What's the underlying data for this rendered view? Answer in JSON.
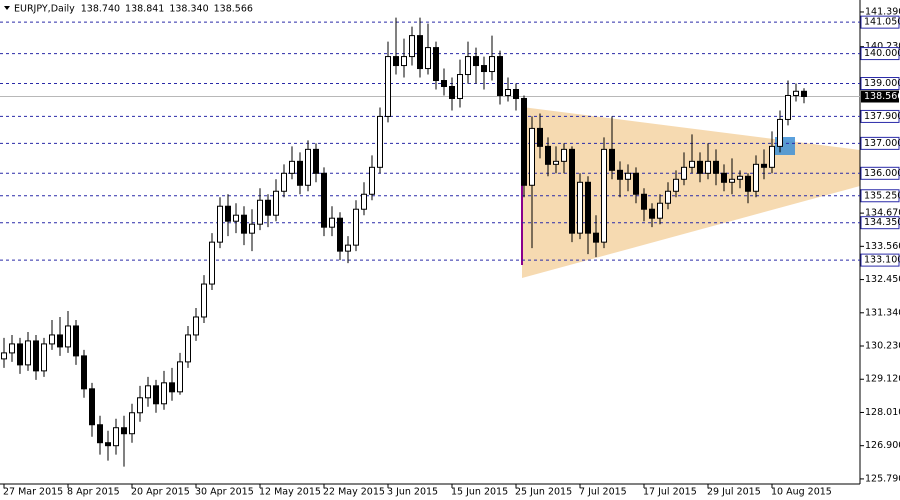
{
  "chart_data": {
    "type": "candlestick",
    "title": "EURJPY,Daily",
    "header_values": [
      "138.740",
      "138.841",
      "138.340",
      "138.566"
    ],
    "categories": [
      "27 Mar 2015",
      null,
      null,
      null,
      null,
      null,
      null,
      null,
      "8 Apr 2015",
      null,
      null,
      null,
      null,
      null,
      null,
      null,
      "20 Apr 2015",
      null,
      null,
      null,
      null,
      null,
      null,
      null,
      "30 Apr 2015",
      null,
      null,
      null,
      null,
      null,
      null,
      null,
      "12 May 2015",
      null,
      null,
      null,
      null,
      null,
      null,
      null,
      "22 May 2015",
      null,
      null,
      null,
      null,
      null,
      null,
      null,
      "3 Jun 2015",
      null,
      null,
      null,
      null,
      null,
      null,
      null,
      "15 Jun 2015",
      null,
      null,
      null,
      null,
      null,
      null,
      null,
      "25 Jun 2015",
      null,
      null,
      null,
      null,
      null,
      null,
      null,
      "7 Jul 2015",
      null,
      null,
      null,
      null,
      null,
      null,
      null,
      "17 Jul 2015",
      null,
      null,
      null,
      null,
      null,
      null,
      null,
      "29 Jul 2015",
      null,
      null,
      null,
      null,
      null,
      null,
      null,
      "10 Aug 2015",
      null,
      null,
      null,
      null
    ],
    "open": [
      129.8,
      130.0,
      130.3,
      129.6,
      130.4,
      129.4,
      130.3,
      130.6,
      130.2,
      130.9,
      129.9,
      128.8,
      127.6,
      127.0,
      126.9,
      127.5,
      127.3,
      128.0,
      128.5,
      128.9,
      128.3,
      129.0,
      128.7,
      129.7,
      130.6,
      131.2,
      132.3,
      133.7,
      134.9,
      134.4,
      134.6,
      134.0,
      134.3,
      135.1,
      134.6,
      135.4,
      136.0,
      136.4,
      135.6,
      136.8,
      136.0,
      134.2,
      134.5,
      133.4,
      133.6,
      134.8,
      135.3,
      136.2,
      137.9,
      139.9,
      139.6,
      139.9,
      140.6,
      139.5,
      140.2,
      139.1,
      138.9,
      138.5,
      139.3,
      139.9,
      139.6,
      139.4,
      139.9,
      138.6,
      138.8,
      138.5,
      135.6,
      137.5,
      136.9,
      136.3,
      136.4,
      136.8,
      134.0,
      135.7,
      134.0,
      133.7,
      136.8,
      136.1,
      135.8,
      136.0,
      135.3,
      134.8,
      134.5,
      135.0,
      135.4,
      135.8,
      136.2,
      136.4,
      136.0,
      136.4,
      136.0,
      135.7,
      135.8,
      135.9,
      135.4,
      136.3,
      136.2,
      136.9,
      137.8,
      138.6,
      138.74
    ],
    "high": [
      130.5,
      130.6,
      130.5,
      130.7,
      130.6,
      130.5,
      131.1,
      131.2,
      131.4,
      131.1,
      130.1,
      129.0,
      127.9,
      127.4,
      127.8,
      127.9,
      128.3,
      128.9,
      129.2,
      129.1,
      129.4,
      129.5,
      130.0,
      130.9,
      131.5,
      132.6,
      134.0,
      135.2,
      135.3,
      135.0,
      134.9,
      134.8,
      135.5,
      135.3,
      135.8,
      136.3,
      136.9,
      136.7,
      137.1,
      137.0,
      136.2,
      134.9,
      134.7,
      133.9,
      135.1,
      135.7,
      136.6,
      138.2,
      140.4,
      141.2,
      140.5,
      140.9,
      141.2,
      141.0,
      140.4,
      139.5,
      139.2,
      139.8,
      140.4,
      140.2,
      139.9,
      140.6,
      140.1,
      139.2,
      139.0,
      138.6,
      137.9,
      138.0,
      137.2,
      136.9,
      137.0,
      136.9,
      136.0,
      135.9,
      134.6,
      137.2,
      137.9,
      136.4,
      136.3,
      136.2,
      135.5,
      135.0,
      135.3,
      135.7,
      136.1,
      136.7,
      137.3,
      136.7,
      137.0,
      136.8,
      136.3,
      136.5,
      136.1,
      136.0,
      136.6,
      136.8,
      137.4,
      138.1,
      139.1,
      139.0,
      138.841
    ],
    "low": [
      129.5,
      129.7,
      129.3,
      129.4,
      129.1,
      129.2,
      130.1,
      129.9,
      130.0,
      129.6,
      128.5,
      127.2,
      126.6,
      126.4,
      126.6,
      126.2,
      127.0,
      127.7,
      128.2,
      128.0,
      128.1,
      128.4,
      128.6,
      129.5,
      130.4,
      131.0,
      132.1,
      133.5,
      133.9,
      134.0,
      133.6,
      133.4,
      134.1,
      134.2,
      134.4,
      135.2,
      135.8,
      135.3,
      135.4,
      135.7,
      133.9,
      133.9,
      133.1,
      133.0,
      133.4,
      134.6,
      135.1,
      136.0,
      137.7,
      139.3,
      139.2,
      139.6,
      139.2,
      139.3,
      138.8,
      138.6,
      138.1,
      138.2,
      139.0,
      139.0,
      138.8,
      139.1,
      138.3,
      138.4,
      138.1,
      135.2,
      133.5,
      136.5,
      135.9,
      136.0,
      136.0,
      133.7,
      133.8,
      133.3,
      133.2,
      133.5,
      135.8,
      135.2,
      135.4,
      135.0,
      134.4,
      134.2,
      134.3,
      134.8,
      135.2,
      135.6,
      136.0,
      135.7,
      135.8,
      135.6,
      135.4,
      135.3,
      135.5,
      135.0,
      135.2,
      135.8,
      136.0,
      136.7,
      137.6,
      138.4,
      138.34
    ],
    "close": [
      130.0,
      130.3,
      129.6,
      130.4,
      129.4,
      130.3,
      130.6,
      130.2,
      130.9,
      129.9,
      128.8,
      127.6,
      127.0,
      126.9,
      127.5,
      127.3,
      128.0,
      128.5,
      128.9,
      128.3,
      129.0,
      128.7,
      129.7,
      130.6,
      131.2,
      132.3,
      133.7,
      134.9,
      134.4,
      134.6,
      134.0,
      134.3,
      135.1,
      134.6,
      135.4,
      136.0,
      136.4,
      135.6,
      136.8,
      136.0,
      134.2,
      134.5,
      133.4,
      133.6,
      134.8,
      135.3,
      136.2,
      137.9,
      139.9,
      139.6,
      139.9,
      140.6,
      139.5,
      140.2,
      139.1,
      138.9,
      138.5,
      139.3,
      139.9,
      139.6,
      139.4,
      139.9,
      138.6,
      138.8,
      138.5,
      135.6,
      137.5,
      136.9,
      136.3,
      136.4,
      136.8,
      134.0,
      135.7,
      134.0,
      133.7,
      136.8,
      136.1,
      135.8,
      136.0,
      135.3,
      134.8,
      134.5,
      135.0,
      135.4,
      135.8,
      136.2,
      136.4,
      136.0,
      136.4,
      136.0,
      135.7,
      135.8,
      135.9,
      135.4,
      136.3,
      136.2,
      136.9,
      137.8,
      138.6,
      138.74,
      138.566
    ],
    "ylim": [
      125.62,
      141.79
    ],
    "yticks": [
      {
        "value": 141.39,
        "label": "141.390"
      },
      {
        "value": 140.23,
        "label": "140.230"
      },
      {
        "value": 134.67,
        "label": "134.670"
      },
      {
        "value": 133.56,
        "label": "133.560"
      },
      {
        "value": 132.45,
        "label": "132.450"
      },
      {
        "value": 131.34,
        "label": "131.340"
      },
      {
        "value": 130.23,
        "label": "130.230"
      },
      {
        "value": 129.12,
        "label": "129.120"
      },
      {
        "value": 128.01,
        "label": "128.010"
      },
      {
        "value": 126.9,
        "label": "126.900"
      },
      {
        "value": 125.79,
        "label": "125.790"
      }
    ],
    "levels": [
      {
        "value": 141.05,
        "label": "141.050"
      },
      {
        "value": 140.0,
        "label": "140.000"
      },
      {
        "value": 139.0,
        "label": "139.000"
      },
      {
        "value": 137.9,
        "label": "137.900"
      },
      {
        "value": 137.0,
        "label": "137.000"
      },
      {
        "value": 136.0,
        "label": "136.000"
      },
      {
        "value": 135.25,
        "label": "135.250"
      },
      {
        "value": 134.35,
        "label": "134.350"
      },
      {
        "value": 133.1,
        "label": "133.100"
      }
    ],
    "current_price": {
      "value": 138.566,
      "label": "138.566"
    }
  }
}
